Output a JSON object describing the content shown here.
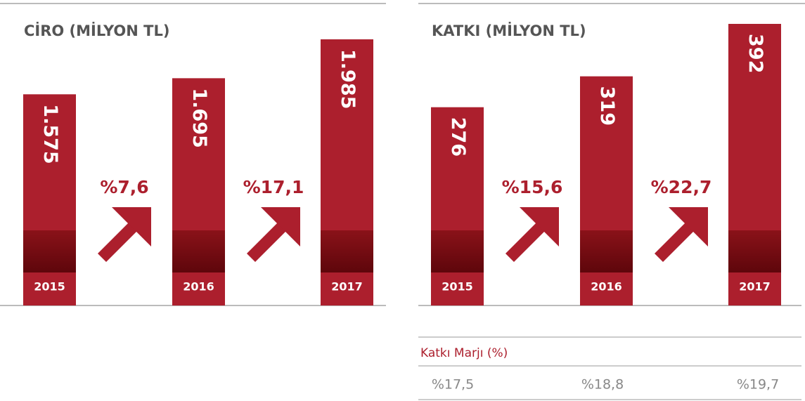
{
  "chart_data": [
    {
      "type": "bar",
      "title": "CİRO (MİLYON TL)",
      "categories": [
        "2015",
        "2016",
        "2017"
      ],
      "values": [
        1575,
        1695,
        1985
      ],
      "value_labels": [
        "1.575",
        "1.695",
        "1.985"
      ],
      "color": "#ac1f2d",
      "growth": [
        7.6,
        17.1
      ],
      "growth_labels": [
        "%7,6",
        "%17,1"
      ]
    },
    {
      "type": "bar",
      "title": "KATKI (MİLYON TL)",
      "categories": [
        "2015",
        "2016",
        "2017"
      ],
      "values": [
        276,
        319,
        392
      ],
      "value_labels": [
        "276",
        "319",
        "392"
      ],
      "color": "#ac1f2d",
      "growth": [
        15.6,
        22.7
      ],
      "growth_labels": [
        "%15,6",
        "%22,7"
      ]
    }
  ],
  "table": {
    "title": "Katkı Marjı (%)",
    "values": [
      17.5,
      18.8,
      19.7
    ],
    "value_labels": [
      "%17,5",
      "%18,8",
      "%19,7"
    ]
  }
}
